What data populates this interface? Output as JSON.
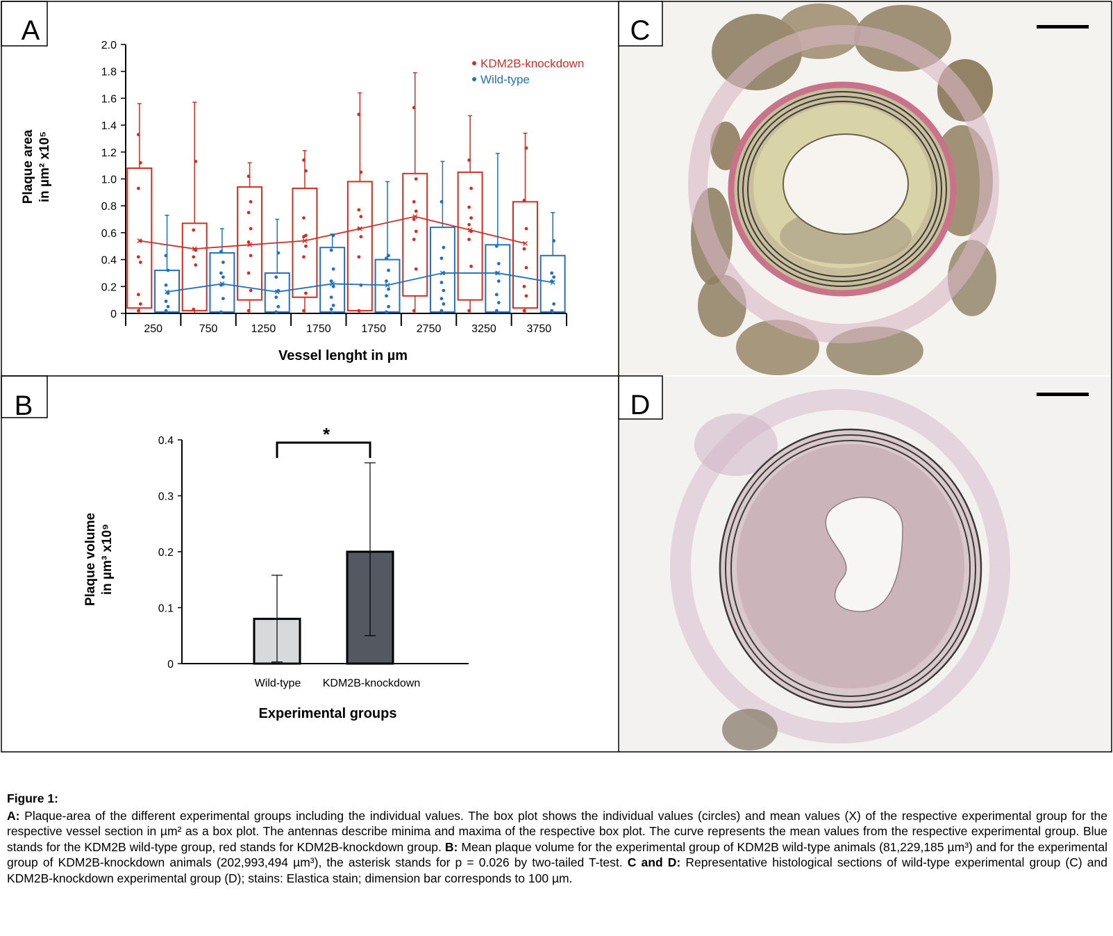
{
  "panels": {
    "A": {
      "letter": "A",
      "chart_data": {
        "type": "box",
        "xlabel": "Vessel lenght in µm",
        "ylabel_line1": "Plaque area",
        "ylabel_line2": "in µm² x10⁵",
        "ylim": [
          0,
          2.0
        ],
        "yticks": [
          "0",
          "0.2",
          "0.4",
          "0.6",
          "0.8",
          "1.0",
          "1.2",
          "1.4",
          "1.6",
          "1.8",
          "2.0"
        ],
        "categories": [
          "250",
          "750",
          "1250",
          "1750",
          "1750",
          "2750",
          "3250",
          "3750"
        ],
        "legend_position": "top-right",
        "series": [
          {
            "name": "KDM2B-knockdown",
            "color": "#d02e22",
            "box": [
              {
                "min": 0.0,
                "q1": 0.04,
                "q3": 1.08,
                "max": 1.56
              },
              {
                "min": 0.0,
                "q1": 0.02,
                "q3": 0.67,
                "max": 1.57
              },
              {
                "min": 0.0,
                "q1": 0.1,
                "q3": 0.94,
                "max": 1.12
              },
              {
                "min": 0.0,
                "q1": 0.12,
                "q3": 0.93,
                "max": 1.21
              },
              {
                "min": 0.0,
                "q1": 0.02,
                "q3": 0.98,
                "max": 1.64
              },
              {
                "min": 0.0,
                "q1": 0.13,
                "q3": 1.04,
                "max": 1.79
              },
              {
                "min": 0.0,
                "q1": 0.1,
                "q3": 1.05,
                "max": 1.47
              },
              {
                "min": 0.0,
                "q1": 0.04,
                "q3": 0.83,
                "max": 1.34
              }
            ],
            "means": [
              0.54,
              0.48,
              0.51,
              0.54,
              0.63,
              0.72,
              0.62,
              0.52
            ],
            "points": [
              [
                0.02,
                0.07,
                0.14,
                0.38,
                0.42,
                0.54,
                0.93,
                1.12,
                1.33
              ],
              [
                0.03,
                0.36,
                0.42,
                0.47,
                0.62,
                1.13
              ],
              [
                0.02,
                0.17,
                0.3,
                0.43,
                0.53,
                0.63,
                0.75,
                0.83,
                1.02
              ],
              [
                0.02,
                0.15,
                0.42,
                0.5,
                0.57,
                0.58,
                0.71,
                1.06,
                1.14
              ],
              [
                0.02,
                0.21,
                0.42,
                0.57,
                0.63,
                0.72,
                0.77,
                1.05,
                1.48
              ],
              [
                0.02,
                0.33,
                0.55,
                0.61,
                0.7,
                0.76,
                0.83,
                1.0,
                1.53
              ],
              [
                0.02,
                0.35,
                0.55,
                0.61,
                0.66,
                0.71,
                0.79,
                0.93,
                1.14
              ],
              [
                0.02,
                0.13,
                0.2,
                0.34,
                0.48,
                0.63,
                0.84,
                1.23
              ]
            ]
          },
          {
            "name": "Wild-type",
            "color": "#1f6fc3",
            "box": [
              {
                "min": 0.0,
                "q1": 0.01,
                "q3": 0.32,
                "max": 0.73
              },
              {
                "min": 0.0,
                "q1": 0.01,
                "q3": 0.45,
                "max": 0.63
              },
              {
                "min": 0.0,
                "q1": 0.01,
                "q3": 0.3,
                "max": 0.7
              },
              {
                "min": 0.0,
                "q1": 0.01,
                "q3": 0.49,
                "max": 0.59
              },
              {
                "min": 0.0,
                "q1": 0.01,
                "q3": 0.4,
                "max": 0.98
              },
              {
                "min": 0.0,
                "q1": 0.01,
                "q3": 0.64,
                "max": 1.13
              },
              {
                "min": 0.0,
                "q1": 0.01,
                "q3": 0.51,
                "max": 1.19
              },
              {
                "min": 0.0,
                "q1": 0.01,
                "q3": 0.43,
                "max": 0.75
              }
            ],
            "means": [
              0.16,
              0.22,
              0.16,
              0.22,
              0.21,
              0.3,
              0.3,
              0.23
            ],
            "points": [
              [
                0.02,
                0.05,
                0.09,
                0.15,
                0.21,
                0.32,
                0.43
              ],
              [
                0.01,
                0.11,
                0.21,
                0.27,
                0.3,
                0.38,
                0.46
              ],
              [
                0.01,
                0.05,
                0.12,
                0.17,
                0.27,
                0.45
              ],
              [
                0.03,
                0.06,
                0.12,
                0.2,
                0.24,
                0.33,
                0.47,
                0.58
              ],
              [
                0.01,
                0.05,
                0.13,
                0.18,
                0.24,
                0.32,
                0.41,
                0.43
              ],
              [
                0.02,
                0.07,
                0.11,
                0.17,
                0.23,
                0.3,
                0.41,
                0.49,
                0.83
              ],
              [
                0.02,
                0.08,
                0.14,
                0.24,
                0.3,
                0.37,
                0.5
              ],
              [
                0.02,
                0.07,
                0.24,
                0.27,
                0.3,
                0.54
              ]
            ]
          }
        ]
      }
    },
    "B": {
      "letter": "B",
      "chart_data": {
        "type": "bar",
        "categories": [
          "Wild-type",
          "KDM2B-knockdown"
        ],
        "values": [
          0.08,
          0.2
        ],
        "errors": [
          [
            0.003,
            0.158
          ],
          [
            0.05,
            0.359
          ]
        ],
        "colors": [
          "#d8d9db",
          "#535861"
        ],
        "ylim": [
          0,
          0.4
        ],
        "yticks": [
          "0",
          "0.1",
          "0.2",
          "0.3",
          "0.4"
        ],
        "xlabel": "Experimental groups",
        "ylabel_line1": "Plaque volume",
        "ylabel_line2": "in µm³ x10⁹",
        "significance": "*"
      }
    },
    "C": {
      "letter": "C",
      "stain_color": "#c8738a",
      "tissue_color": "#8f7f63"
    },
    "D": {
      "letter": "D",
      "stain_color": "#b98aa6",
      "tissue_color": "#c9b9bd"
    }
  },
  "caption": {
    "title": "Figure 1:",
    "a_label": "A:",
    "a_text": " Plaque-area of the different experimental groups including the individual values. The box plot shows the individual values (circles) and mean values (X) of the respective experimental group for the respective vessel section in µm² as a box plot. The antennas describe minima and maxima of the respective box plot. The curve represents the mean values from the respective experimental group. Blue stands for the KDM2B wild-type group, red stands for KDM2B-knockdown group. ",
    "b_label": "B:",
    "b_text": " Mean plaque volume for the experimental group of KDM2B wild-type animals (81,229,185 µm³) and for the experimental group of KDM2B-knockdown animals (202,993,494 µm³), the asterisk stands for p = 0.026 by two-tailed T-test. ",
    "cd_label": "C and D:",
    "cd_text": " Representative histological sections of wild-type experimental group (C) and KDM2B-knockdown experimental group (D); stains: Elastica stain; dimension bar corresponds to 100 µm."
  }
}
